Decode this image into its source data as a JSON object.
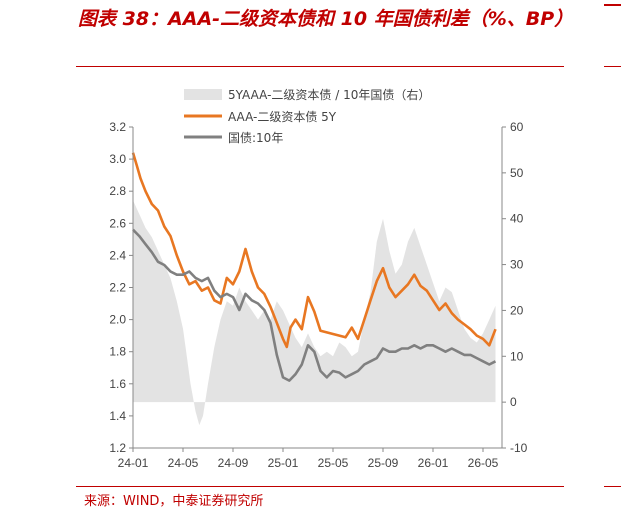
{
  "header": {
    "title": "图表 38：AAA-二级资本债和 10 年国债利差（%、BP）"
  },
  "footer": {
    "source": "来源：WIND，中泰证券研究所"
  },
  "chart_data": {
    "type": "line",
    "title": "图表 38：AAA-二级资本债和 10 年国债利差（%、BP）",
    "x_tick_labels": [
      "24-01",
      "24-05",
      "24-09",
      "25-01",
      "25-05",
      "25-09",
      "26-01",
      "26-05"
    ],
    "y_left": {
      "ticks": [
        "3.2",
        "3.0",
        "2.8",
        "2.6",
        "2.4",
        "2.2",
        "2.0",
        "1.8",
        "1.6",
        "1.4",
        "1.2"
      ],
      "range": [
        1.2,
        3.2
      ]
    },
    "y_right": {
      "ticks": [
        "60",
        "50",
        "40",
        "30",
        "20",
        "10",
        "0",
        "-10"
      ],
      "range": [
        -10,
        60
      ]
    },
    "legend_position": "top",
    "grid": false,
    "series": [
      {
        "name": "5YAAA-二级资本债 / 10年国债（右）",
        "type": "area",
        "axis": "right",
        "color": "#e3e3e3",
        "points": [
          [
            "24-01",
            44
          ],
          [
            "24-01.5",
            41
          ],
          [
            "24-02",
            38
          ],
          [
            "24-02.5",
            36
          ],
          [
            "24-03",
            33
          ],
          [
            "24-03.5",
            30
          ],
          [
            "24-04",
            27
          ],
          [
            "24-04.5",
            22
          ],
          [
            "24-05",
            16
          ],
          [
            "24-05.3",
            10
          ],
          [
            "24-05.6",
            4
          ],
          [
            "24-06",
            -2
          ],
          [
            "24-06.3",
            -5
          ],
          [
            "24-06.6",
            -3
          ],
          [
            "24-07",
            4
          ],
          [
            "24-07.5",
            12
          ],
          [
            "24-08",
            18
          ],
          [
            "24-08.5",
            22
          ],
          [
            "24-09",
            21
          ],
          [
            "24-09.5",
            25
          ],
          [
            "24-10",
            22
          ],
          [
            "24-10.5",
            20
          ],
          [
            "24-11",
            18
          ],
          [
            "24-11.5",
            20
          ],
          [
            "24-12",
            18
          ],
          [
            "24-12.5",
            22
          ],
          [
            "25-01",
            20
          ],
          [
            "25-01.5",
            17
          ],
          [
            "25-02",
            14
          ],
          [
            "25-02.5",
            12
          ],
          [
            "25-03",
            15
          ],
          [
            "25-03.5",
            12
          ],
          [
            "25-04",
            10
          ],
          [
            "25-04.5",
            11
          ],
          [
            "25-05",
            10
          ],
          [
            "25-05.5",
            13
          ],
          [
            "25-06",
            12
          ],
          [
            "25-06.5",
            10
          ],
          [
            "25-07",
            11
          ],
          [
            "25-07.5",
            18
          ],
          [
            "25-08",
            24
          ],
          [
            "25-08.5",
            35
          ],
          [
            "25-09",
            40
          ],
          [
            "25-09.5",
            33
          ],
          [
            "25-10",
            28
          ],
          [
            "25-10.5",
            30
          ],
          [
            "25-11",
            35
          ],
          [
            "25-11.5",
            38
          ],
          [
            "25-12",
            34
          ],
          [
            "25-12.5",
            30
          ],
          [
            "26-01",
            26
          ],
          [
            "26-01.5",
            22
          ],
          [
            "26-02",
            25
          ],
          [
            "26-02.5",
            24
          ],
          [
            "26-03",
            20
          ],
          [
            "26-03.5",
            16
          ],
          [
            "26-04",
            14
          ],
          [
            "26-04.5",
            13
          ],
          [
            "26-05",
            15
          ],
          [
            "26-05.5",
            18
          ],
          [
            "26-06",
            21
          ]
        ]
      },
      {
        "name": "AAA-二级资本债 5Y",
        "type": "line",
        "axis": "left",
        "color": "#e87722",
        "points": [
          [
            "24-01",
            3.04
          ],
          [
            "24-01.3",
            2.96
          ],
          [
            "24-01.6",
            2.88
          ],
          [
            "24-02",
            2.8
          ],
          [
            "24-02.5",
            2.72
          ],
          [
            "24-03",
            2.68
          ],
          [
            "24-03.5",
            2.58
          ],
          [
            "24-04",
            2.52
          ],
          [
            "24-04.5",
            2.4
          ],
          [
            "24-05",
            2.3
          ],
          [
            "24-05.5",
            2.22
          ],
          [
            "24-06",
            2.24
          ],
          [
            "24-06.5",
            2.18
          ],
          [
            "24-07",
            2.2
          ],
          [
            "24-07.5",
            2.12
          ],
          [
            "24-08",
            2.1
          ],
          [
            "24-08.5",
            2.26
          ],
          [
            "24-09",
            2.22
          ],
          [
            "24-09.5",
            2.3
          ],
          [
            "24-10",
            2.44
          ],
          [
            "24-10.5",
            2.3
          ],
          [
            "24-11",
            2.2
          ],
          [
            "24-11.5",
            2.16
          ],
          [
            "24-12",
            2.08
          ],
          [
            "24-12.5",
            1.98
          ],
          [
            "25-01",
            1.88
          ],
          [
            "25-01.3",
            1.83
          ],
          [
            "25-01.6",
            1.95
          ],
          [
            "25-02",
            2.0
          ],
          [
            "25-02.5",
            1.94
          ],
          [
            "25-03",
            2.14
          ],
          [
            "25-03.5",
            2.05
          ],
          [
            "25-04",
            1.93
          ],
          [
            "25-04.5",
            1.92
          ],
          [
            "25-05",
            1.91
          ],
          [
            "25-05.5",
            1.9
          ],
          [
            "25-06",
            1.89
          ],
          [
            "25-06.5",
            1.95
          ],
          [
            "25-07",
            1.88
          ],
          [
            "25-07.5",
            2.0
          ],
          [
            "25-08",
            2.12
          ],
          [
            "25-08.5",
            2.24
          ],
          [
            "25-09",
            2.32
          ],
          [
            "25-09.5",
            2.2
          ],
          [
            "25-10",
            2.14
          ],
          [
            "25-10.5",
            2.18
          ],
          [
            "25-11",
            2.22
          ],
          [
            "25-11.5",
            2.28
          ],
          [
            "25-12",
            2.21
          ],
          [
            "25-12.5",
            2.18
          ],
          [
            "26-01",
            2.12
          ],
          [
            "26-01.5",
            2.06
          ],
          [
            "26-02",
            2.1
          ],
          [
            "26-02.5",
            2.04
          ],
          [
            "26-03",
            2.0
          ],
          [
            "26-03.5",
            1.97
          ],
          [
            "26-04",
            1.94
          ],
          [
            "26-04.5",
            1.9
          ],
          [
            "26-05",
            1.88
          ],
          [
            "26-05.5",
            1.84
          ],
          [
            "26-06",
            1.94
          ]
        ]
      },
      {
        "name": "国债:10年",
        "type": "line",
        "axis": "left",
        "color": "#808080",
        "points": [
          [
            "24-01",
            2.56
          ],
          [
            "24-01.5",
            2.52
          ],
          [
            "24-02",
            2.47
          ],
          [
            "24-02.5",
            2.42
          ],
          [
            "24-03",
            2.36
          ],
          [
            "24-03.5",
            2.34
          ],
          [
            "24-04",
            2.3
          ],
          [
            "24-04.5",
            2.28
          ],
          [
            "24-05",
            2.28
          ],
          [
            "24-05.5",
            2.3
          ],
          [
            "24-06",
            2.26
          ],
          [
            "24-06.5",
            2.24
          ],
          [
            "24-07",
            2.26
          ],
          [
            "24-07.5",
            2.18
          ],
          [
            "24-08",
            2.14
          ],
          [
            "24-08.5",
            2.16
          ],
          [
            "24-09",
            2.14
          ],
          [
            "24-09.5",
            2.06
          ],
          [
            "24-10",
            2.16
          ],
          [
            "24-10.5",
            2.12
          ],
          [
            "24-11",
            2.1
          ],
          [
            "24-11.5",
            2.06
          ],
          [
            "24-12",
            1.98
          ],
          [
            "24-12.5",
            1.78
          ],
          [
            "25-01",
            1.64
          ],
          [
            "25-01.5",
            1.62
          ],
          [
            "25-02",
            1.66
          ],
          [
            "25-02.5",
            1.72
          ],
          [
            "25-03",
            1.84
          ],
          [
            "25-03.5",
            1.8
          ],
          [
            "25-04",
            1.68
          ],
          [
            "25-04.5",
            1.64
          ],
          [
            "25-05",
            1.68
          ],
          [
            "25-05.5",
            1.67
          ],
          [
            "25-06",
            1.64
          ],
          [
            "25-06.5",
            1.66
          ],
          [
            "25-07",
            1.68
          ],
          [
            "25-07.5",
            1.72
          ],
          [
            "25-08",
            1.74
          ],
          [
            "25-08.5",
            1.76
          ],
          [
            "25-09",
            1.82
          ],
          [
            "25-09.5",
            1.8
          ],
          [
            "25-10",
            1.8
          ],
          [
            "25-10.5",
            1.82
          ],
          [
            "25-11",
            1.82
          ],
          [
            "25-11.5",
            1.84
          ],
          [
            "25-12",
            1.82
          ],
          [
            "25-12.5",
            1.84
          ],
          [
            "26-01",
            1.84
          ],
          [
            "26-01.5",
            1.82
          ],
          [
            "26-02",
            1.8
          ],
          [
            "26-02.5",
            1.82
          ],
          [
            "26-03",
            1.8
          ],
          [
            "26-03.5",
            1.78
          ],
          [
            "26-04",
            1.78
          ],
          [
            "26-04.5",
            1.76
          ],
          [
            "26-05",
            1.74
          ],
          [
            "26-05.5",
            1.72
          ],
          [
            "26-06",
            1.74
          ]
        ]
      }
    ]
  }
}
